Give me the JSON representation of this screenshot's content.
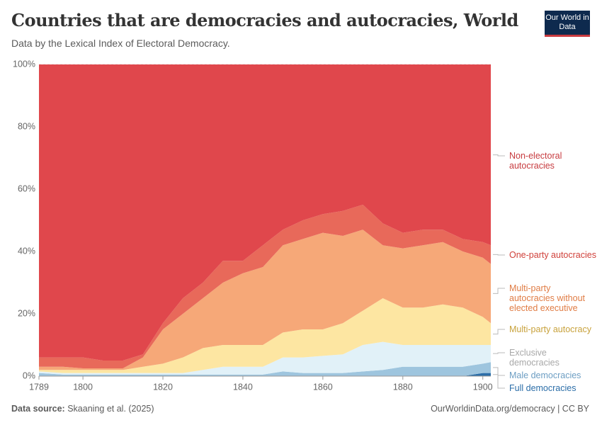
{
  "header": {
    "title": "Countries that are democracies and autocracies, World",
    "subtitle": "Data by the Lexical Index of Electoral Democracy.",
    "logo": "Our World in Data"
  },
  "chart_data": {
    "type": "stacked-area",
    "x": [
      1789,
      1795,
      1800,
      1805,
      1810,
      1815,
      1820,
      1825,
      1830,
      1835,
      1840,
      1845,
      1850,
      1855,
      1860,
      1865,
      1870,
      1875,
      1880,
      1885,
      1890,
      1895,
      1900,
      1902
    ],
    "xlim": [
      1789,
      1902
    ],
    "xticks": [
      1789,
      1800,
      1820,
      1840,
      1860,
      1880,
      1900
    ],
    "ylim": [
      0,
      100
    ],
    "yticks": [
      {
        "value": 0,
        "label": "0%"
      },
      {
        "value": 20,
        "label": "20%"
      },
      {
        "value": 40,
        "label": "40%"
      },
      {
        "value": 60,
        "label": "60%"
      },
      {
        "value": 80,
        "label": "80%"
      },
      {
        "value": 100,
        "label": "100%"
      }
    ],
    "grid": true,
    "series": [
      {
        "name": "Full democracies",
        "color": "#2c6ea8",
        "values": [
          0,
          0,
          0,
          0,
          0,
          0,
          0,
          0,
          0,
          0,
          0,
          0,
          0,
          0,
          0,
          0,
          0,
          0,
          0,
          0,
          0,
          0,
          1,
          1
        ]
      },
      {
        "name": "Male democracies",
        "color": "#9ec5de",
        "values": [
          1,
          0.5,
          0.5,
          0.5,
          0.5,
          0.5,
          0.5,
          0.5,
          0.5,
          0.5,
          0.5,
          0.5,
          1.5,
          1,
          1,
          1,
          1.5,
          2,
          3,
          3,
          3,
          3,
          3,
          3.5
        ]
      },
      {
        "name": "Exclusive democracies",
        "color": "#e1f1f8",
        "values": [
          0.5,
          0.5,
          0.5,
          0.5,
          0.5,
          0.5,
          0.5,
          0.5,
          1.5,
          2.5,
          2.5,
          2.5,
          4.5,
          5,
          5.5,
          6,
          8.5,
          9,
          7,
          7,
          7,
          7,
          6,
          5.5
        ]
      },
      {
        "name": "Multi-party autocracy",
        "color": "#fde6a2",
        "values": [
          0.5,
          1,
          1,
          1,
          1,
          2,
          3,
          5,
          7,
          7,
          7,
          7,
          8,
          9,
          8.5,
          10,
          11,
          14,
          12,
          12,
          13,
          12,
          9,
          7
        ]
      },
      {
        "name": "Multi-party autocracies without elected executive",
        "color": "#f6a878",
        "values": [
          1,
          1,
          0.5,
          0.5,
          0.5,
          3,
          11,
          14,
          16,
          20,
          23,
          25,
          28,
          29,
          31,
          28,
          26,
          17,
          19,
          20,
          20,
          18,
          19,
          19
        ]
      },
      {
        "name": "One-party autocracies",
        "color": "#e8695a",
        "values": [
          3,
          3,
          3.5,
          2.5,
          2.5,
          1,
          2,
          5,
          5,
          7,
          4,
          7,
          5,
          6,
          6,
          8,
          8,
          7,
          5,
          5,
          4,
          4,
          5,
          6
        ]
      },
      {
        "name": "Non-electoral autocracies",
        "color": "#e0474c",
        "values": [
          94,
          94,
          94,
          95,
          95,
          93,
          83,
          75,
          70,
          63,
          63,
          58,
          53,
          50,
          48,
          47,
          45,
          51,
          54,
          53,
          53,
          56,
          57,
          58
        ]
      }
    ]
  },
  "footer": {
    "source_label": "Data source:",
    "source": "Skaaning et al. (2025)",
    "url": "OurWorldinData.org/democracy | CC BY"
  }
}
